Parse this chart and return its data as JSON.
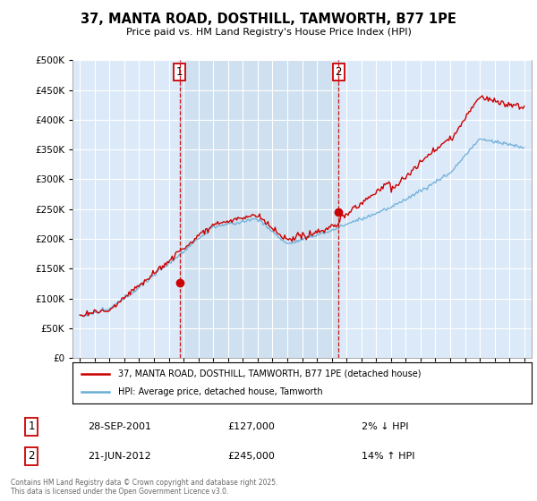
{
  "title": "37, MANTA ROAD, DOSTHILL, TAMWORTH, B77 1PE",
  "subtitle": "Price paid vs. HM Land Registry's House Price Index (HPI)",
  "legend_line1": "37, MANTA ROAD, DOSTHILL, TAMWORTH, B77 1PE (detached house)",
  "legend_line2": "HPI: Average price, detached house, Tamworth",
  "annotation1_label": "1",
  "annotation1_date": "28-SEP-2001",
  "annotation1_price": "£127,000",
  "annotation1_hpi": "2% ↓ HPI",
  "annotation2_label": "2",
  "annotation2_date": "21-JUN-2012",
  "annotation2_price": "£245,000",
  "annotation2_hpi": "14% ↑ HPI",
  "footer": "Contains HM Land Registry data © Crown copyright and database right 2025.\nThis data is licensed under the Open Government Licence v3.0.",
  "background_color": "#dce9f8",
  "shade_color": "#cfe0f0",
  "hpi_color": "#6aaed6",
  "price_color": "#cc0000",
  "vline_color": "#cc0000",
  "marker1_x": 2001.73,
  "marker1_y": 127000,
  "marker2_x": 2012.47,
  "marker2_y": 245000,
  "ylim": [
    0,
    500000
  ],
  "xlim": [
    1994.5,
    2025.5
  ],
  "yticks": [
    0,
    50000,
    100000,
    150000,
    200000,
    250000,
    300000,
    350000,
    400000,
    450000,
    500000
  ]
}
